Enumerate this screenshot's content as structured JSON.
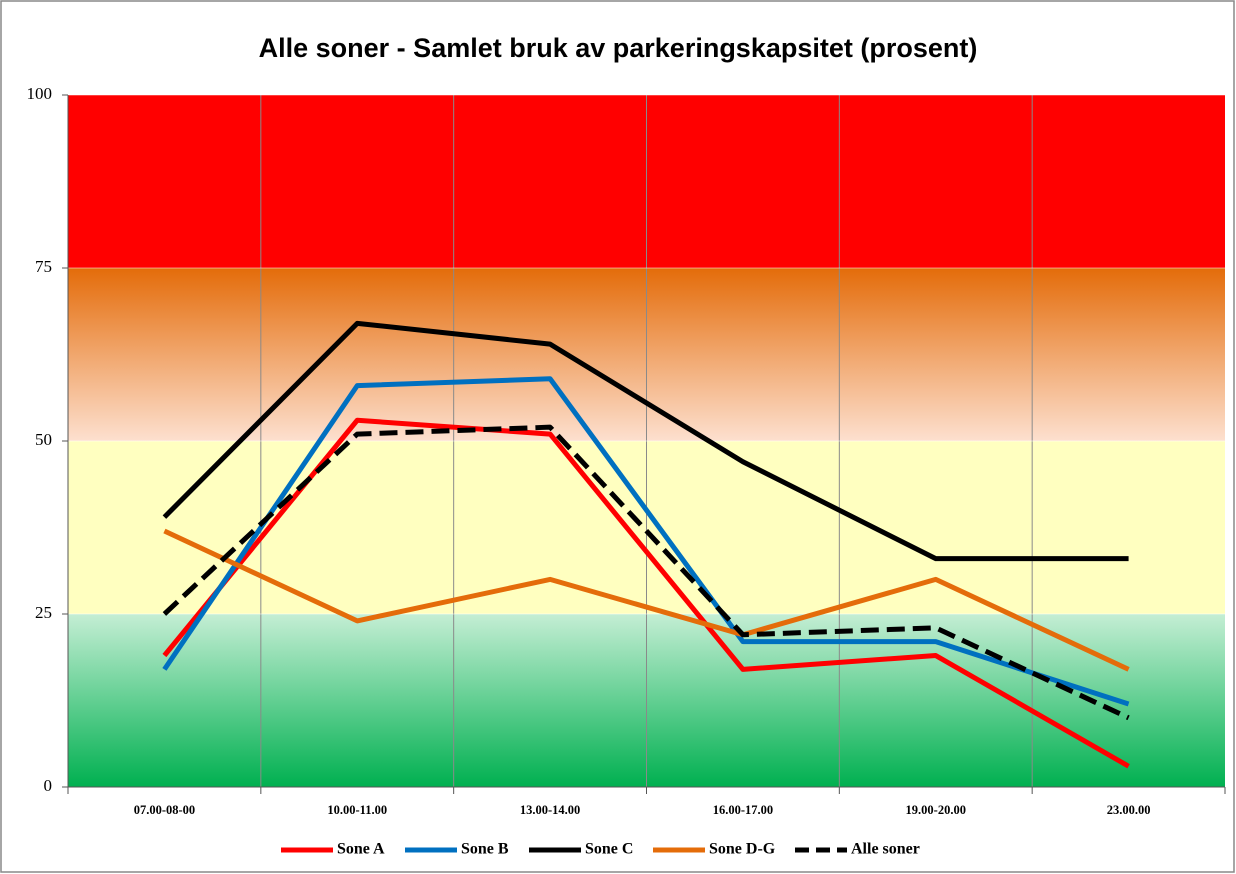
{
  "chart_data": {
    "type": "line",
    "title": "Alle soner - Samlet bruk av parkeringskapsitet (prosent)",
    "categories": [
      "07.00-08-00",
      "10.00-11.00",
      "13.00-14.00",
      "16.00-17.00",
      "19.00-20.00",
      "23.00.00"
    ],
    "series": [
      {
        "name": "Sone A",
        "color": "#ff0000",
        "values": [
          19,
          53,
          51,
          17,
          19,
          3
        ]
      },
      {
        "name": "Sone B",
        "color": "#0070c0",
        "values": [
          17,
          58,
          59,
          21,
          21,
          12
        ]
      },
      {
        "name": "Sone C",
        "color": "#000000",
        "values": [
          39,
          67,
          64,
          47,
          33,
          33
        ]
      },
      {
        "name": "Sone D-G",
        "color": "#e46c0a",
        "values": [
          37,
          24,
          30,
          22,
          30,
          17
        ]
      },
      {
        "name": "Alle soner",
        "color": "#000000",
        "dashed": true,
        "values": [
          25,
          51,
          52,
          22,
          23,
          10
        ]
      }
    ],
    "ylim": [
      0,
      100
    ],
    "yticks": [
      0,
      25,
      50,
      75,
      100
    ],
    "grid": true,
    "background_bands": [
      [
        "#00b050",
        "#c4eed4"
      ],
      [
        "#ffffc0",
        "#ffffc0"
      ],
      [
        "#fde0cf",
        "#e46c0a"
      ],
      [
        "#ff0000",
        "#ff0000"
      ]
    ],
    "legend": "bottom"
  }
}
